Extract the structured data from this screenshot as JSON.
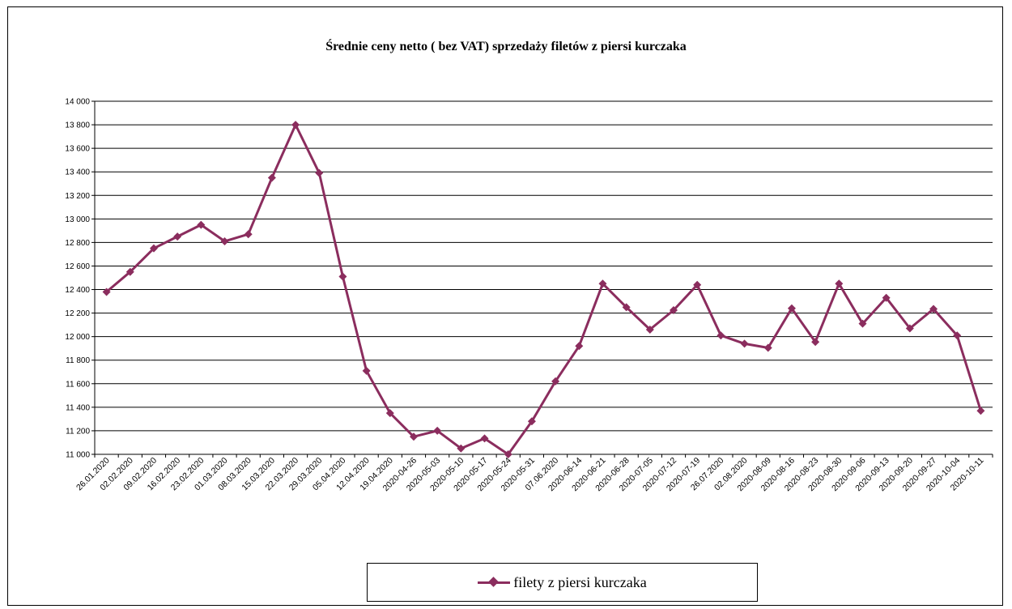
{
  "chart_data": {
    "type": "line",
    "title": "Średnie ceny netto ( bez VAT) sprzedaży  filetów z piersi kurczaka",
    "xlabel": "",
    "ylabel": "",
    "ylim": [
      11000,
      14000
    ],
    "y_ticks": [
      11000,
      11200,
      11400,
      11600,
      11800,
      12000,
      12200,
      12400,
      12600,
      12800,
      13000,
      13200,
      13400,
      13600,
      13800,
      14000
    ],
    "y_tick_labels": [
      "11 000",
      "11 200",
      "11 400",
      "11 600",
      "11 800",
      "12 000",
      "12 200",
      "12 400",
      "12 600",
      "12 800",
      "13 000",
      "13 200",
      "13 400",
      "13 600",
      "13 800",
      "14 000"
    ],
    "grid": true,
    "legend_position": "bottom",
    "categories": [
      "26.01.2020",
      "02.02.2020",
      "09.02.2020",
      "16.02.2020",
      "23.02.2020",
      "01.03.2020",
      "08.03.2020",
      "15.03.2020",
      "22.03.2020",
      "29.03.2020",
      "05.04.2020",
      "12.04.2020",
      "19.04.2020",
      "2020-04-26",
      "2020-05-03",
      "2020-05-10",
      "2020-05-17",
      "2020-05-24",
      "2020-05-31",
      "07.06.2020",
      "2020-06-14",
      "2020-06-21",
      "2020-06-28",
      "2020-07-05",
      "2020-07-12",
      "2020-07-19",
      "26.07.2020",
      "02.08.2020",
      "2020-08-09",
      "2020-08-16",
      "2020-08-23",
      "2020-08-30",
      "2020-09-06",
      "2020-09-13",
      "2020-09-20",
      "2020-09-27",
      "2020-10-04",
      "2020-10-11"
    ],
    "series": [
      {
        "name": "filety z piersi kurczaka",
        "color": "#8B2D5E",
        "values": [
          12380,
          12550,
          12750,
          12850,
          12950,
          12810,
          12870,
          13350,
          13800,
          13390,
          12510,
          11710,
          11350,
          11150,
          11200,
          11050,
          11135,
          11000,
          11280,
          11620,
          11920,
          12450,
          12250,
          12060,
          12225,
          12440,
          12010,
          11940,
          11905,
          12240,
          11955,
          12450,
          12110,
          12330,
          12070,
          12235,
          12010,
          11370
        ]
      }
    ]
  }
}
